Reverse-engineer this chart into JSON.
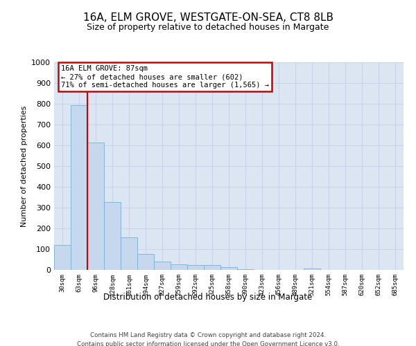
{
  "title1": "16A, ELM GROVE, WESTGATE-ON-SEA, CT8 8LB",
  "title2": "Size of property relative to detached houses in Margate",
  "xlabel": "Distribution of detached houses by size in Margate",
  "ylabel": "Number of detached properties",
  "footer1": "Contains HM Land Registry data © Crown copyright and database right 2024.",
  "footer2": "Contains public sector information licensed under the Open Government Licence v3.0.",
  "bar_color": "#c5d8ee",
  "bar_edge_color": "#7aafd4",
  "annotation_box_color": "#ffffff",
  "annotation_box_edge": "#cc0000",
  "vline_color": "#cc0000",
  "grid_color": "#c8d5e8",
  "background_color": "#dce6f2",
  "property_label": "16A ELM GROVE: 87sqm",
  "annotation_line1": "← 27% of detached houses are smaller (602)",
  "annotation_line2": "71% of semi-detached houses are larger (1,565) →",
  "ylim": [
    0,
    1000
  ],
  "yticks": [
    0,
    100,
    200,
    300,
    400,
    500,
    600,
    700,
    800,
    900,
    1000
  ],
  "bin_labels": [
    "30sqm",
    "63sqm",
    "96sqm",
    "128sqm",
    "161sqm",
    "194sqm",
    "227sqm",
    "259sqm",
    "292sqm",
    "325sqm",
    "358sqm",
    "390sqm",
    "423sqm",
    "456sqm",
    "489sqm",
    "521sqm",
    "554sqm",
    "587sqm",
    "620sqm",
    "652sqm",
    "685sqm"
  ],
  "bar_heights": [
    120,
    795,
    615,
    328,
    158,
    78,
    40,
    27,
    22,
    22,
    14,
    4,
    0,
    0,
    0,
    8,
    0,
    0,
    0,
    0,
    0
  ],
  "vline_x": 1.5,
  "fig_width": 6.0,
  "fig_height": 5.0,
  "dpi": 100
}
